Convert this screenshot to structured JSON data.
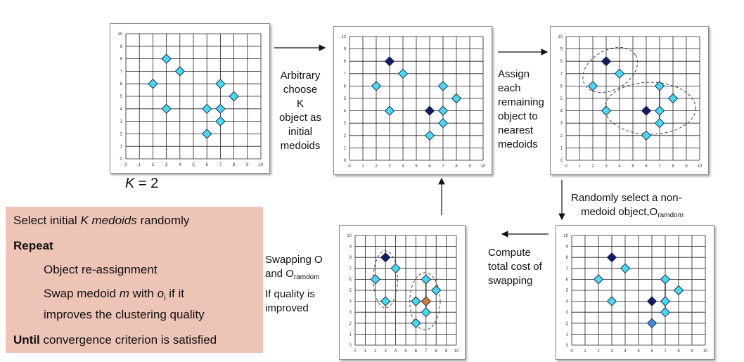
{
  "colors": {
    "point_fill": "#46d9f0",
    "medoid_fill": "#131a63",
    "random_fill": "#3a8fd6",
    "orange_fill": "#d97a30",
    "algo_bg": "#eec4b6"
  },
  "axis": {
    "x_ticks": [
      "0",
      "1",
      "2",
      "3",
      "4",
      "5",
      "6",
      "7",
      "8",
      "9",
      "10"
    ],
    "y_ticks": [
      "0",
      "1",
      "2",
      "3",
      "4",
      "5",
      "6",
      "7",
      "8",
      "9",
      "10"
    ]
  },
  "panels": [
    {
      "points": [
        [
          3,
          8
        ],
        [
          4,
          7
        ],
        [
          2,
          6
        ],
        [
          3,
          4
        ],
        [
          7,
          6
        ],
        [
          8,
          5
        ],
        [
          6,
          4
        ],
        [
          7,
          4
        ],
        [
          7,
          3
        ],
        [
          6,
          2
        ]
      ],
      "medoids": [],
      "random": [],
      "orange": [],
      "lines": [],
      "ellipses": []
    },
    {
      "points": [
        [
          3,
          8
        ],
        [
          4,
          7
        ],
        [
          2,
          6
        ],
        [
          3,
          4
        ],
        [
          7,
          6
        ],
        [
          8,
          5
        ],
        [
          6,
          4
        ],
        [
          7,
          4
        ],
        [
          7,
          3
        ],
        [
          6,
          2
        ]
      ],
      "medoids": [
        [
          3,
          8
        ],
        [
          6,
          4
        ]
      ],
      "random": [],
      "orange": [],
      "lines": [],
      "ellipses": []
    },
    {
      "points": [
        [
          3,
          8
        ],
        [
          4,
          7
        ],
        [
          2,
          6
        ],
        [
          3,
          4
        ],
        [
          7,
          6
        ],
        [
          8,
          5
        ],
        [
          6,
          4
        ],
        [
          7,
          4
        ],
        [
          7,
          3
        ],
        [
          6,
          2
        ]
      ],
      "medoids": [
        [
          3,
          8
        ],
        [
          6,
          4
        ]
      ],
      "random": [],
      "orange": [],
      "lines": [
        [
          [
            7,
            6
          ],
          [
            7,
            3
          ]
        ]
      ],
      "ellipses": [
        [
          3.3,
          7.3,
          2.2,
          1.6,
          -30
        ],
        [
          6.3,
          4.2,
          3.4,
          2.1,
          0
        ]
      ]
    },
    {
      "points": [
        [
          3,
          8
        ],
        [
          4,
          7
        ],
        [
          2,
          6
        ],
        [
          3,
          4
        ],
        [
          7,
          6
        ],
        [
          8,
          5
        ],
        [
          6,
          4
        ],
        [
          7,
          4
        ],
        [
          7,
          3
        ],
        [
          6,
          2
        ]
      ],
      "medoids": [
        [
          3,
          8
        ],
        [
          6,
          4
        ]
      ],
      "random": [
        [
          6,
          2
        ]
      ],
      "orange": [],
      "lines": [
        [
          [
            7,
            6
          ],
          [
            7,
            3
          ]
        ]
      ],
      "ellipses": []
    },
    {
      "points": [
        [
          3,
          8
        ],
        [
          4,
          7
        ],
        [
          2,
          6
        ],
        [
          3,
          4
        ],
        [
          7,
          6
        ],
        [
          8,
          5
        ],
        [
          6,
          4
        ],
        [
          7,
          4
        ],
        [
          7,
          3
        ],
        [
          6,
          2
        ]
      ],
      "medoids": [
        [
          3,
          8
        ]
      ],
      "random": [],
      "orange": [
        [
          7,
          4
        ]
      ],
      "lines": [
        [
          [
            7,
            6
          ],
          [
            7,
            3
          ]
        ]
      ],
      "ellipses": [
        [
          3,
          6,
          1.2,
          2.6,
          0
        ],
        [
          6.9,
          4,
          1.5,
          2.6,
          0
        ]
      ]
    }
  ],
  "labels": {
    "k_prefix": "K",
    "k_suffix": " = 2",
    "step1": [
      "Arbitrary",
      "choose K",
      "object as",
      "initial",
      "medoids"
    ],
    "step2": [
      "Assign",
      "each",
      "remaining",
      "object to",
      "nearest",
      "medoids"
    ],
    "step3_line1": "Randomly select a non-",
    "step3_line2": "medoid object,O",
    "step3_sub": "ramdom",
    "step4": [
      "Compute",
      "total cost of",
      "swapping"
    ],
    "step5_line1": "Swapping O",
    "step5_line2": "and O",
    "step5_sub": "ramdom",
    "step5_line3": "If quality is",
    "step5_line4": "improved"
  },
  "algorithm": {
    "line1_a": "Select initial ",
    "line1_b": "K medoids",
    "line1_c": " randomly",
    "repeat": "Repeat",
    "step1": "Object re-assignment",
    "step2_a": "Swap medoid ",
    "step2_b": "m",
    "step2_c": " with ",
    "step2_d": "o",
    "step2_e": "i",
    "step2_f": " if it",
    "step2_g": "improves the clustering quality",
    "until": "Until",
    "until_rest": " convergence criterion is satisfied"
  }
}
